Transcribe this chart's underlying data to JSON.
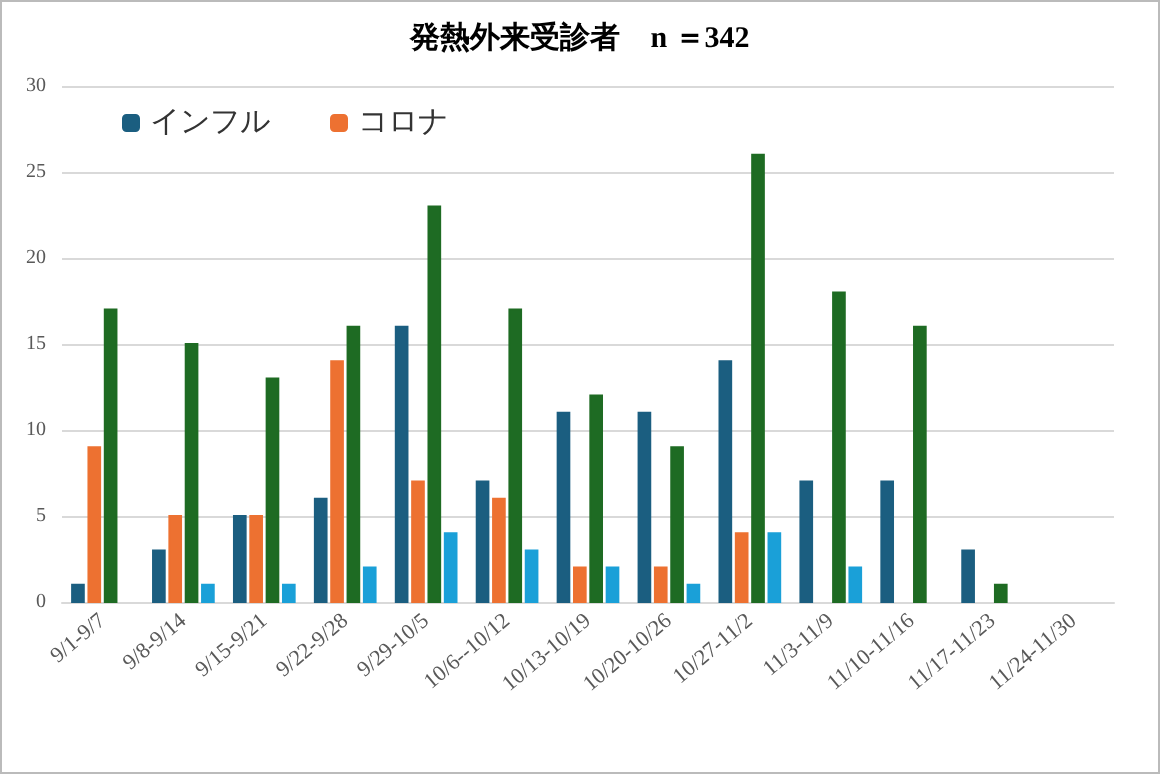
{
  "chart_data": {
    "type": "bar",
    "title": "発熱外来受診者　n ＝342",
    "categories": [
      "9/1-9/7",
      "9/8-9/14",
      "9/15-9/21",
      "9/22-9/28",
      "9/29-10/5",
      "10/6--10/12",
      "10/13-10/19",
      "10/20-10/26",
      "10/27-11/2",
      "11/3-11/9",
      "11/10-11/16",
      "11/17-11/23",
      "11/24-11/30"
    ],
    "series": [
      {
        "name": "インフル",
        "color": "#1b5e80",
        "values": [
          1,
          3,
          5,
          6,
          16,
          7,
          11,
          11,
          14,
          7,
          7,
          3,
          null
        ]
      },
      {
        "name": "コロナ",
        "color": "#ed7131",
        "values": [
          9,
          5,
          5,
          14,
          7,
          6,
          2,
          2,
          4,
          null,
          null,
          null,
          null
        ]
      },
      {
        "color": "#1e6b23",
        "values": [
          17,
          15,
          13,
          16,
          23,
          17,
          12,
          9,
          26,
          18,
          16,
          1,
          null
        ]
      },
      {
        "color": "#1aa0d8",
        "values": [
          null,
          1,
          1,
          2,
          4,
          3,
          2,
          1,
          4,
          2,
          null,
          null,
          null
        ]
      }
    ],
    "ylim": [
      0,
      30
    ],
    "yticks": [
      0,
      5,
      10,
      15,
      20,
      25,
      30
    ],
    "grid": "y",
    "legend": "top left"
  }
}
